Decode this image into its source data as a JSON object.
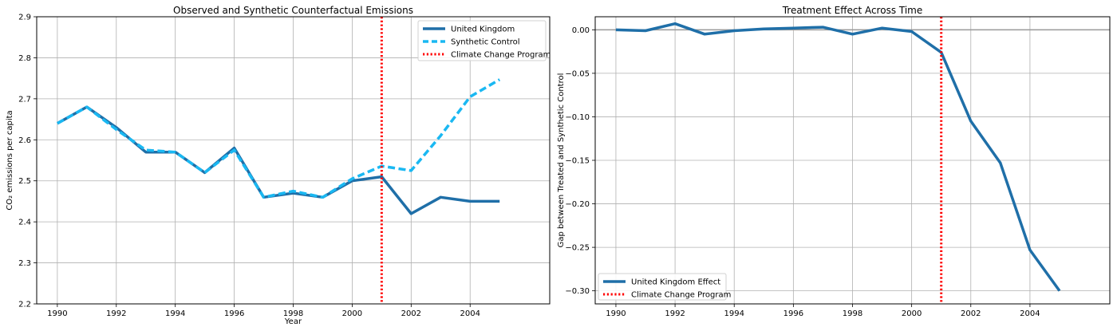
{
  "chart_data": [
    {
      "type": "line",
      "title": "Observed and Synthetic Counterfactual Emissions",
      "xlabel": "Year",
      "ylabel": "CO₂ emissions per capita",
      "xlim": [
        1989.3,
        2006.7
      ],
      "ylim": [
        2.2,
        2.9
      ],
      "x_ticks": [
        1990,
        1992,
        1994,
        1996,
        1998,
        2000,
        2002,
        2004
      ],
      "y_ticks": [
        2.2,
        2.3,
        2.4,
        2.5,
        2.6,
        2.7,
        2.8,
        2.9
      ],
      "y_tick_labels": [
        "2.2",
        "2.3",
        "2.4",
        "2.5",
        "2.6",
        "2.7",
        "2.8",
        "2.9"
      ],
      "grid": true,
      "legend_position": "top-right",
      "x": [
        1990,
        1991,
        1992,
        1993,
        1994,
        1995,
        1996,
        1997,
        1998,
        1999,
        2000,
        2001,
        2002,
        2003,
        2004,
        2005
      ],
      "series": [
        {
          "name": "United Kingdom",
          "style": "solid",
          "color": "#1f6fa8",
          "values": [
            2.64,
            2.68,
            2.63,
            2.57,
            2.57,
            2.52,
            2.58,
            2.46,
            2.47,
            2.46,
            2.5,
            2.51,
            2.42,
            2.46,
            2.45,
            2.45
          ]
        },
        {
          "name": "Synthetic Control",
          "style": "dashed",
          "color": "#1ab8f2",
          "values": [
            2.64,
            2.68,
            2.625,
            2.575,
            2.57,
            2.52,
            2.575,
            2.46,
            2.475,
            2.46,
            2.505,
            2.536,
            2.525,
            2.61,
            2.705,
            2.747
          ]
        }
      ],
      "vline": {
        "name": "Climate Change Program",
        "x": 2001,
        "style": "dotted",
        "color": "#ff0000"
      }
    },
    {
      "type": "line",
      "title": "Treatment Effect Across Time",
      "xlabel": "",
      "ylabel": "Gap between Treated and Synthetic Control",
      "xlim": [
        1989.3,
        2006.7
      ],
      "ylim": [
        -0.315,
        0.015
      ],
      "x_ticks": [
        1990,
        1992,
        1994,
        1996,
        1998,
        2000,
        2002,
        2004
      ],
      "y_ticks": [
        0.0,
        -0.05,
        -0.1,
        -0.15,
        -0.2,
        -0.25,
        -0.3
      ],
      "y_tick_labels": [
        "0.00",
        "−0.05",
        "−0.10",
        "−0.15",
        "−0.20",
        "−0.25",
        "−0.30"
      ],
      "grid": true,
      "legend_position": "bottom-left",
      "x": [
        1990,
        1991,
        1992,
        1993,
        1994,
        1995,
        1996,
        1997,
        1998,
        1999,
        2000,
        2001,
        2002,
        2003,
        2004,
        2005
      ],
      "series": [
        {
          "name": "United Kingdom Effect",
          "style": "solid",
          "color": "#1f6fa8",
          "values": [
            0.0,
            -0.001,
            0.007,
            -0.005,
            -0.001,
            0.001,
            0.002,
            0.003,
            -0.005,
            0.002,
            -0.002,
            -0.026,
            -0.105,
            -0.153,
            -0.253,
            -0.3
          ]
        }
      ],
      "hline": {
        "y": 0.0,
        "color": "#999999"
      },
      "vline": {
        "name": "Climate Change Program",
        "x": 2001,
        "style": "dotted",
        "color": "#ff0000"
      }
    }
  ]
}
